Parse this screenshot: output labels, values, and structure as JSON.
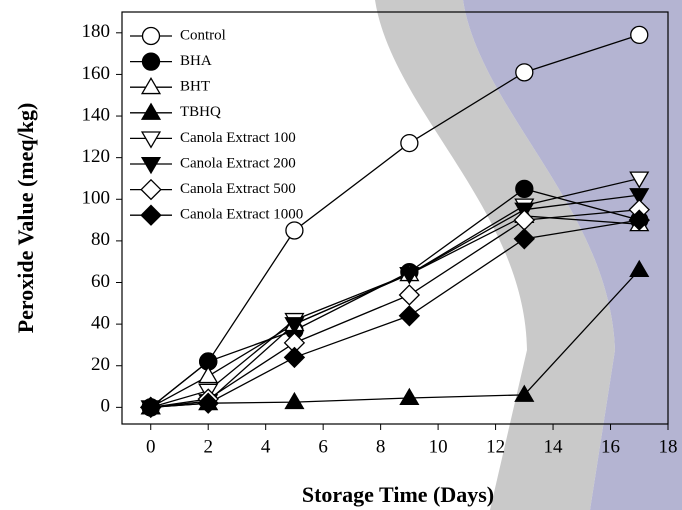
{
  "chart_data": {
    "type": "line",
    "xlabel": "Storage Time (Days)",
    "ylabel": "Peroxide Value (meq/kg)",
    "x": [
      0,
      2,
      5,
      9,
      13,
      17
    ],
    "xlim": [
      -1,
      18
    ],
    "xticks": [
      0,
      2,
      4,
      6,
      8,
      10,
      12,
      14,
      16,
      18
    ],
    "ylim": [
      -8,
      190
    ],
    "yticks": [
      0,
      20,
      40,
      60,
      80,
      100,
      120,
      140,
      160,
      180
    ],
    "legend": "upper left",
    "series": [
      {
        "name": "Control",
        "color": "#000000",
        "marker": "circle",
        "filled": false,
        "values": [
          0,
          22,
          85,
          127,
          161,
          179
        ]
      },
      {
        "name": "BHA",
        "color": "#000000",
        "marker": "circle",
        "filled": true,
        "values": [
          0,
          22,
          37,
          65,
          105,
          90
        ]
      },
      {
        "name": "BHT",
        "color": "#000000",
        "marker": "triangle-up",
        "filled": false,
        "values": [
          0,
          15,
          40,
          64,
          92,
          88
        ]
      },
      {
        "name": "TBHQ",
        "color": "#000000",
        "marker": "triangle-up",
        "filled": true,
        "values": [
          0,
          2,
          2.5,
          4.5,
          6,
          66
        ]
      },
      {
        "name": "Canola Extract 100",
        "color": "#000000",
        "marker": "triangle-down",
        "filled": false,
        "values": [
          0,
          8,
          42,
          64,
          97,
          110
        ]
      },
      {
        "name": "Canola Extract 200",
        "color": "#000000",
        "marker": "triangle-down",
        "filled": true,
        "values": [
          0,
          3,
          40,
          64,
          95,
          102
        ]
      },
      {
        "name": "Canola Extract 500",
        "color": "#000000",
        "marker": "diamond",
        "filled": false,
        "values": [
          0,
          4,
          31,
          54,
          90,
          95
        ]
      },
      {
        "name": "Canola Extract 1000",
        "color": "#000000",
        "marker": "diamond",
        "filled": true,
        "values": [
          0,
          2,
          24,
          44,
          81,
          90
        ]
      }
    ]
  }
}
